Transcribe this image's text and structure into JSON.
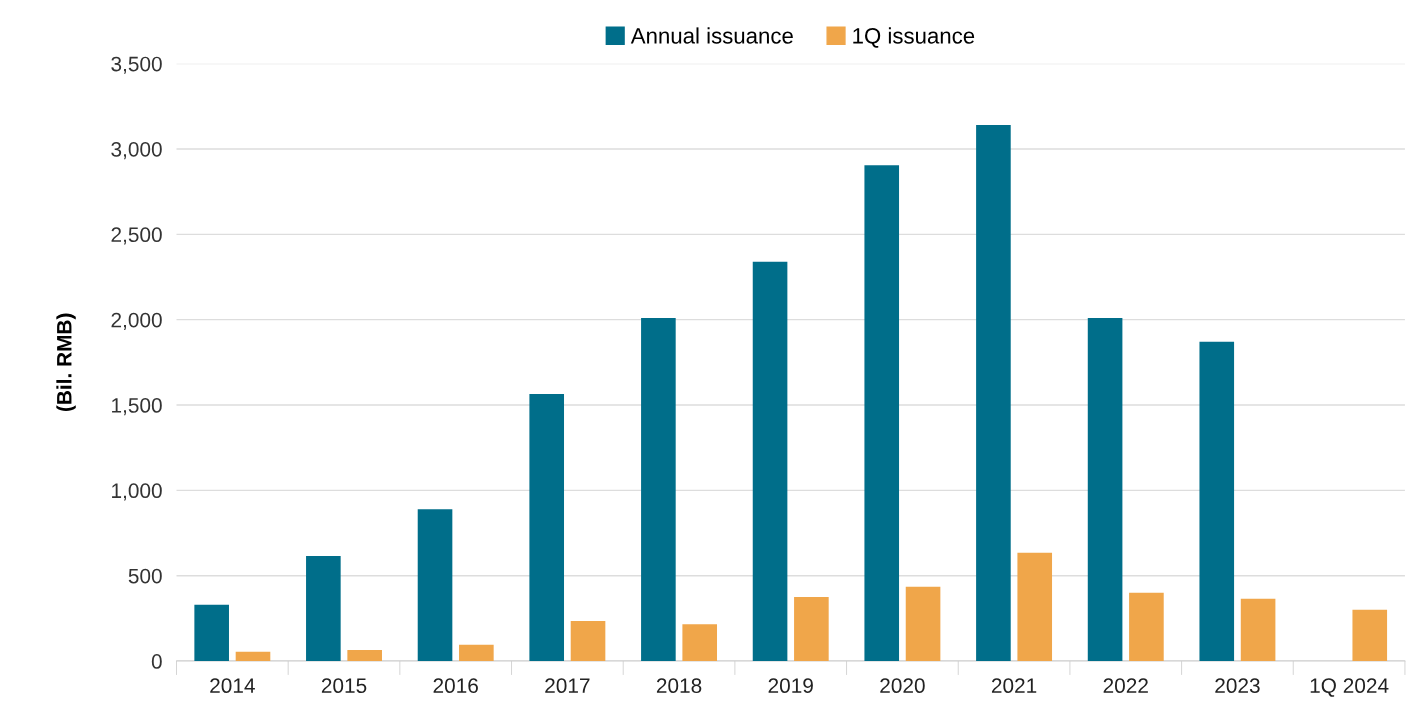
{
  "chart_data": {
    "type": "bar",
    "ylabel": "(Bil. RMB)",
    "categories": [
      "2014",
      "2015",
      "2016",
      "2017",
      "2018",
      "2019",
      "2020",
      "2021",
      "2022",
      "2023",
      "1Q 2024"
    ],
    "series": [
      {
        "name": "Annual issuance",
        "color": "#006e8a",
        "values": [
          330,
          615,
          890,
          1565,
          2010,
          2340,
          2905,
          3140,
          2010,
          1870,
          null
        ]
      },
      {
        "name": "1Q issuance",
        "color": "#f0a64a",
        "values": [
          55,
          65,
          95,
          235,
          215,
          375,
          435,
          635,
          400,
          365,
          300
        ]
      }
    ],
    "ylim": [
      0,
      3500
    ],
    "yticks": [
      {
        "value": 0,
        "label": "0"
      },
      {
        "value": 500,
        "label": "500"
      },
      {
        "value": 1000,
        "label": "1,000"
      },
      {
        "value": 1500,
        "label": "1,500"
      },
      {
        "value": 2000,
        "label": "2,000"
      },
      {
        "value": 2500,
        "label": "2,500"
      },
      {
        "value": 3000,
        "label": "3,000"
      },
      {
        "value": 3500,
        "label": "3,500"
      }
    ],
    "grid": "y",
    "legend": "top"
  }
}
